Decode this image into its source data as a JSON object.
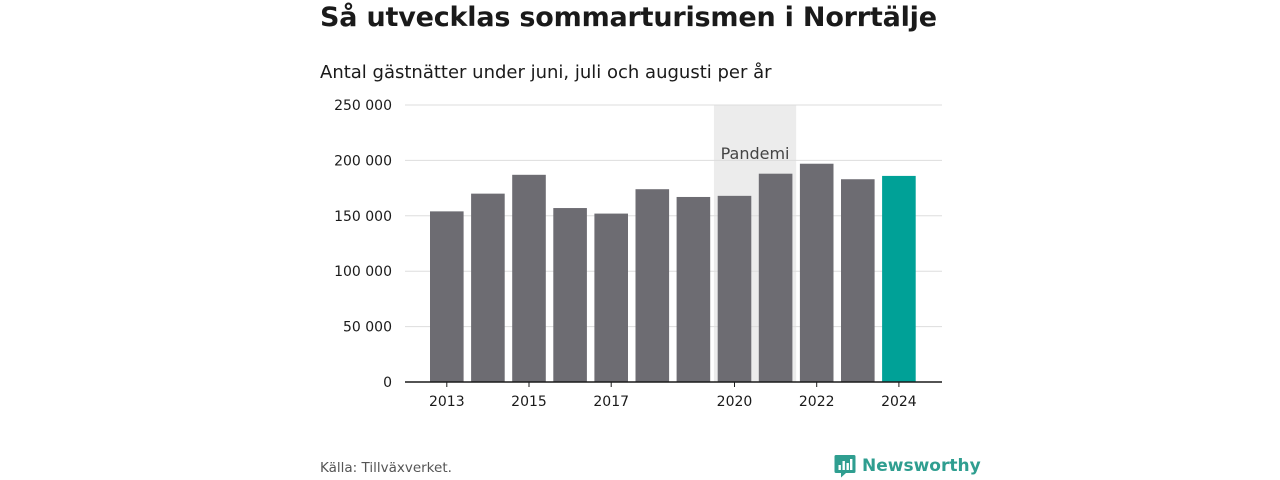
{
  "header": {
    "title": "Så utvecklas sommarturismen i Norrtälje",
    "subtitle": "Antal gästnätter under juni, juli och augusti per år"
  },
  "footer": {
    "source": "Källa: Tillväxverket.",
    "brand": "Newsworthy"
  },
  "colors": {
    "bar": "#6d6c72",
    "highlight": "#00a197",
    "band": "#ececec",
    "grid": "#dddddd",
    "brand": "#2f9e90"
  },
  "chart_data": {
    "type": "bar",
    "title": "Så utvecklas sommarturismen i Norrtälje",
    "subtitle": "Antal gästnätter under juni, juli och augusti per år",
    "categories": [
      "2013",
      "2014",
      "2015",
      "2016",
      "2017",
      "2018",
      "2019",
      "2020",
      "2021",
      "2022",
      "2023",
      "2024"
    ],
    "values": [
      154000,
      170000,
      187000,
      157000,
      152000,
      174000,
      167000,
      168000,
      188000,
      197000,
      183000,
      186000
    ],
    "highlight_category": "2024",
    "x_tick_labels": [
      "2013",
      "2015",
      "2017",
      "2020",
      "2022",
      "2024"
    ],
    "y_ticks": [
      0,
      50000,
      100000,
      150000,
      200000,
      250000
    ],
    "y_tick_labels": [
      "0",
      "50 000",
      "100 000",
      "150 000",
      "200 000",
      "250 000"
    ],
    "ylim": [
      0,
      250000
    ],
    "grid": true,
    "annotation": {
      "label": "Pandemi",
      "from": "2020",
      "to": "2021"
    },
    "source": "Källa: Tillväxverket."
  }
}
